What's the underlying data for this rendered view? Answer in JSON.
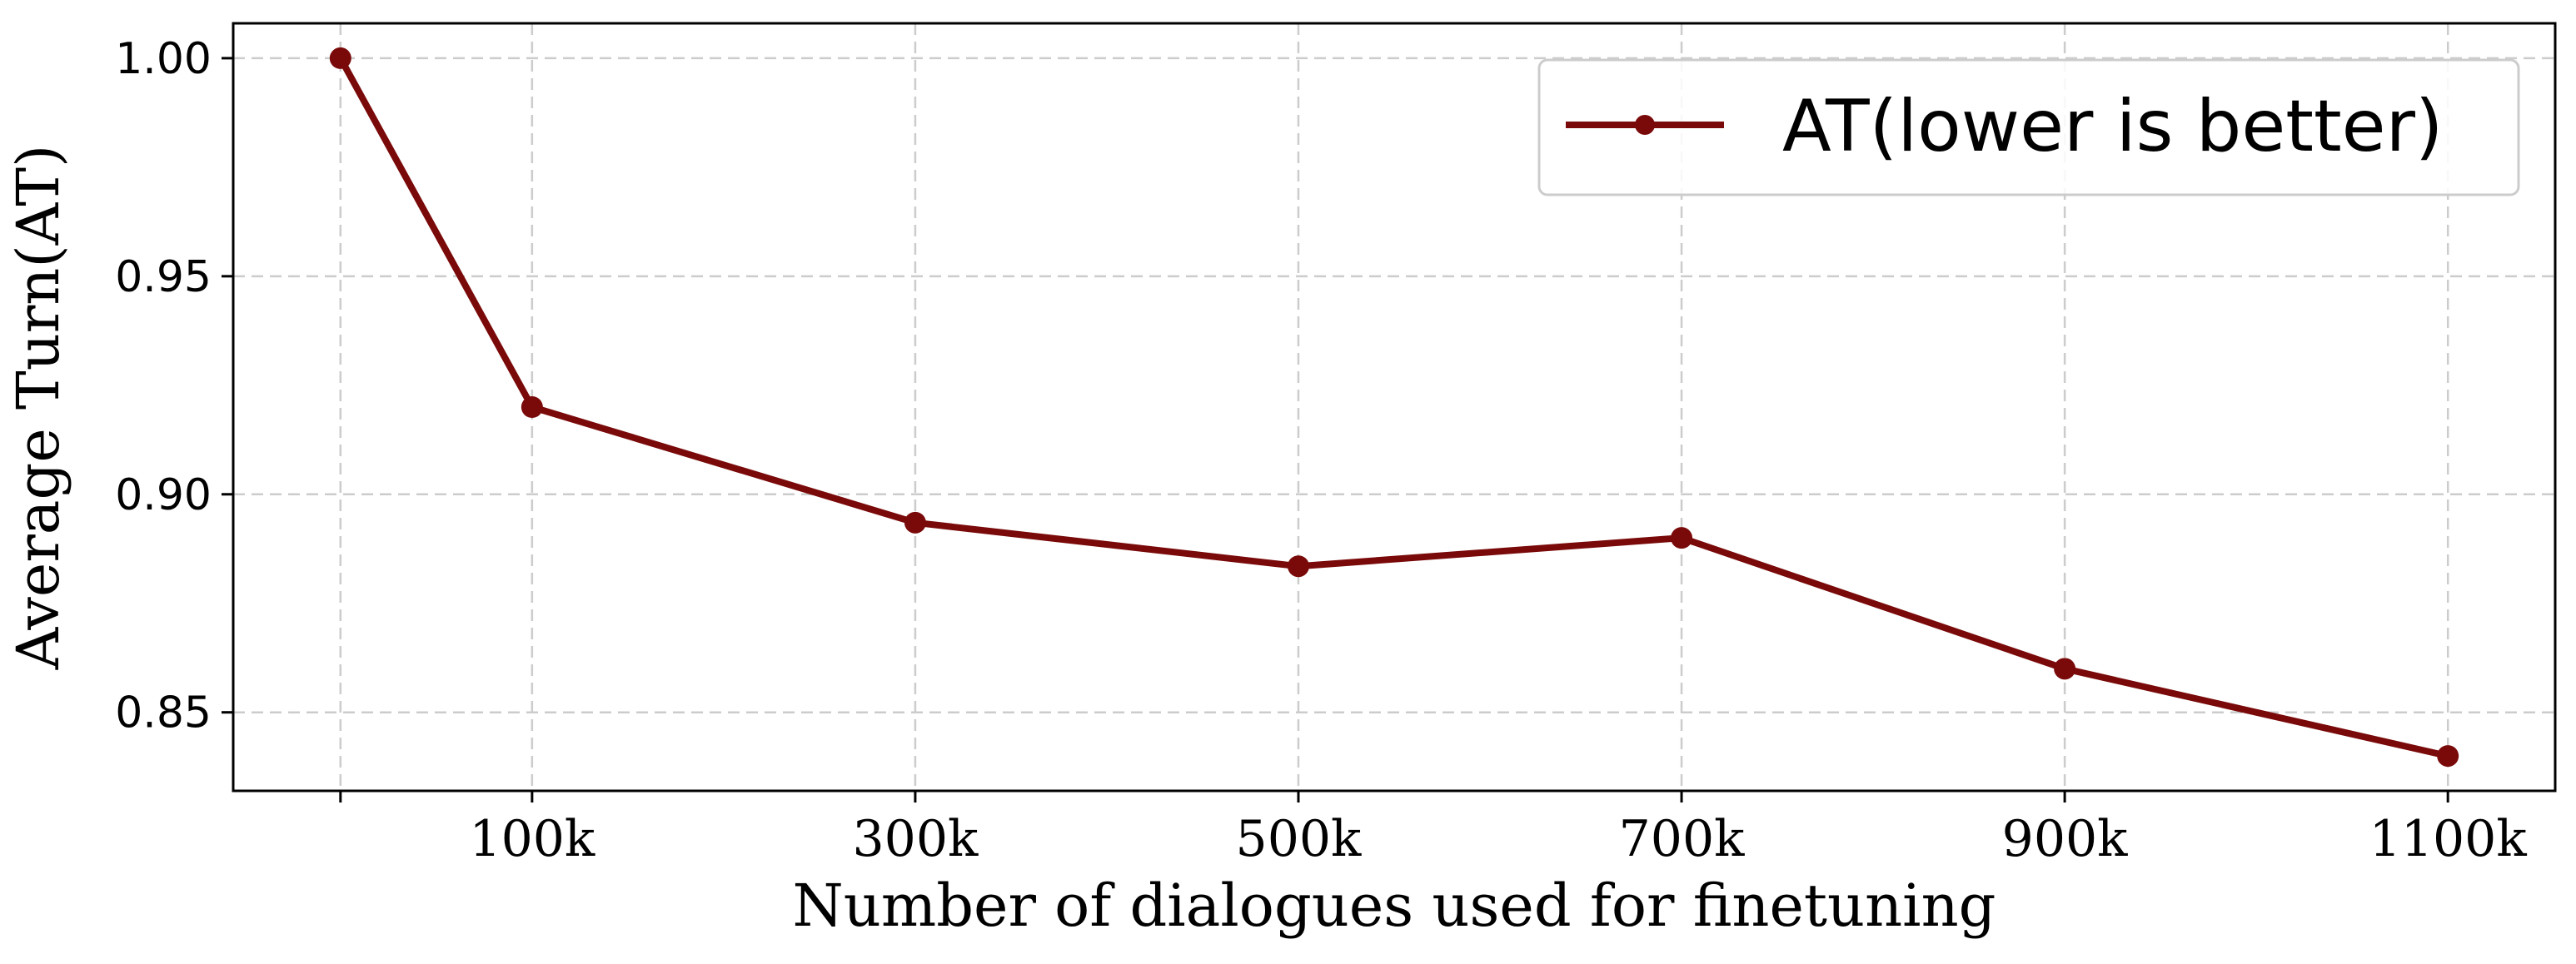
{
  "chart_data": {
    "type": "line",
    "title": "",
    "xlabel": "Number of dialogues used for finetuning",
    "ylabel": "Average Turn(AT)",
    "x": [
      0,
      100,
      300,
      500,
      700,
      900,
      1100
    ],
    "x_tick_values": [
      0,
      100,
      300,
      500,
      700,
      900,
      1100
    ],
    "x_tick_labels": [
      "",
      "100k",
      "300k",
      "500k",
      "700k",
      "900k",
      "1100k"
    ],
    "y_ticks": [
      0.85,
      0.9,
      0.95,
      1.0
    ],
    "y_tick_labels": [
      "0.85",
      "0.90",
      "0.95",
      "1.00"
    ],
    "xlim": [
      -56,
      1156
    ],
    "ylim": [
      0.832,
      1.008
    ],
    "grid": true,
    "legend_position": "top-right",
    "series": [
      {
        "name": "AT(lower is better)",
        "color": "#7a0a0a",
        "values": [
          1.0,
          0.92,
          0.8935,
          0.8835,
          0.89,
          0.86,
          0.84
        ]
      }
    ]
  }
}
